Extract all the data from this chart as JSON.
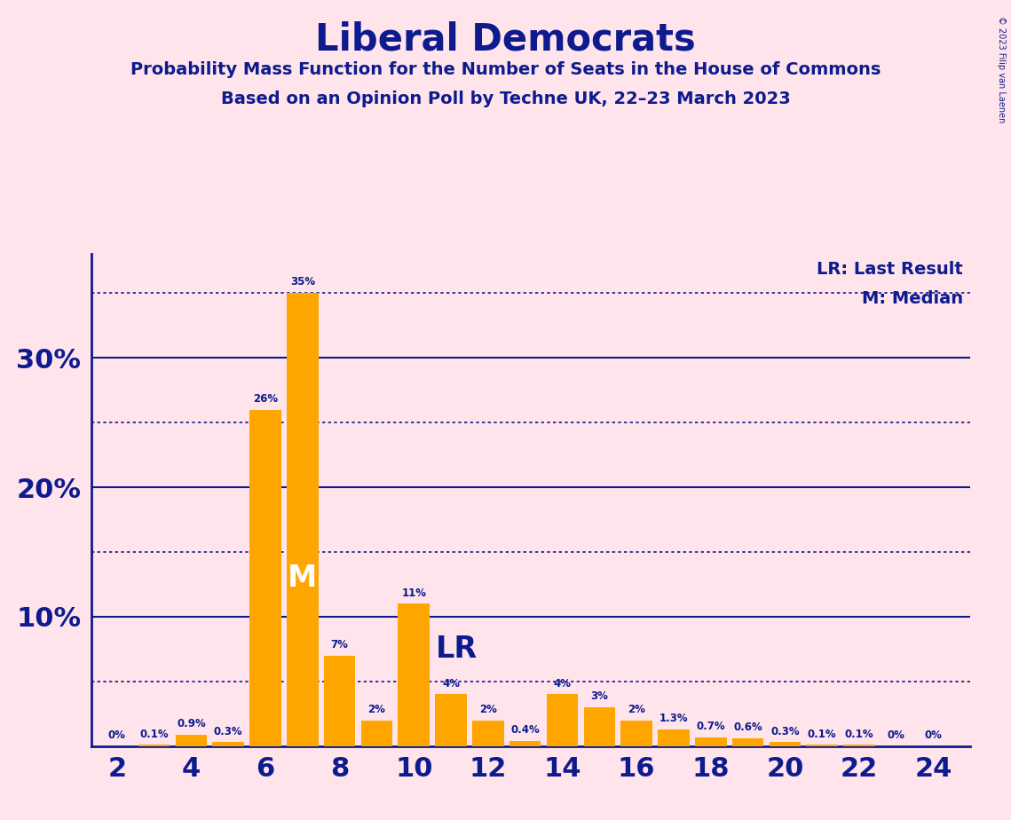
{
  "title": "Liberal Democrats",
  "subtitle1": "Probability Mass Function for the Number of Seats in the House of Commons",
  "subtitle2": "Based on an Opinion Poll by Techne UK, 22–23 March 2023",
  "copyright": "© 2023 Filip van Laenen",
  "background_color": "#FFE4EC",
  "bar_color": "#FFA500",
  "text_color": "#0D1B8E",
  "axis_color": "#0D1B8E",
  "categories": [
    2,
    3,
    4,
    5,
    6,
    7,
    8,
    9,
    10,
    11,
    12,
    13,
    14,
    15,
    16,
    17,
    18,
    19,
    20,
    21,
    22,
    23,
    24
  ],
  "values": [
    0.0,
    0.1,
    0.9,
    0.3,
    26.0,
    35.0,
    7.0,
    2.0,
    11.0,
    4.0,
    2.0,
    0.4,
    4.0,
    3.0,
    2.0,
    1.3,
    0.7,
    0.6,
    0.3,
    0.1,
    0.1,
    0.0,
    0.0
  ],
  "labels": [
    "0%",
    "0.1%",
    "0.9%",
    "0.3%",
    "26%",
    "35%",
    "7%",
    "2%",
    "11%",
    "4%",
    "2%",
    "0.4%",
    "4%",
    "3%",
    "2%",
    "1.3%",
    "0.7%",
    "0.6%",
    "0.3%",
    "0.1%",
    "0.1%",
    "0%",
    "0%"
  ],
  "xtick_positions": [
    2,
    4,
    6,
    8,
    10,
    12,
    14,
    16,
    18,
    20,
    22,
    24
  ],
  "yticks_solid": [
    10,
    20,
    30
  ],
  "yticks_dotted": [
    5,
    15,
    25,
    35
  ],
  "ylim": [
    0,
    38
  ],
  "lr_x": 10,
  "m_x": 7,
  "legend_lr": "LR: Last Result",
  "legend_m": "M: Median"
}
